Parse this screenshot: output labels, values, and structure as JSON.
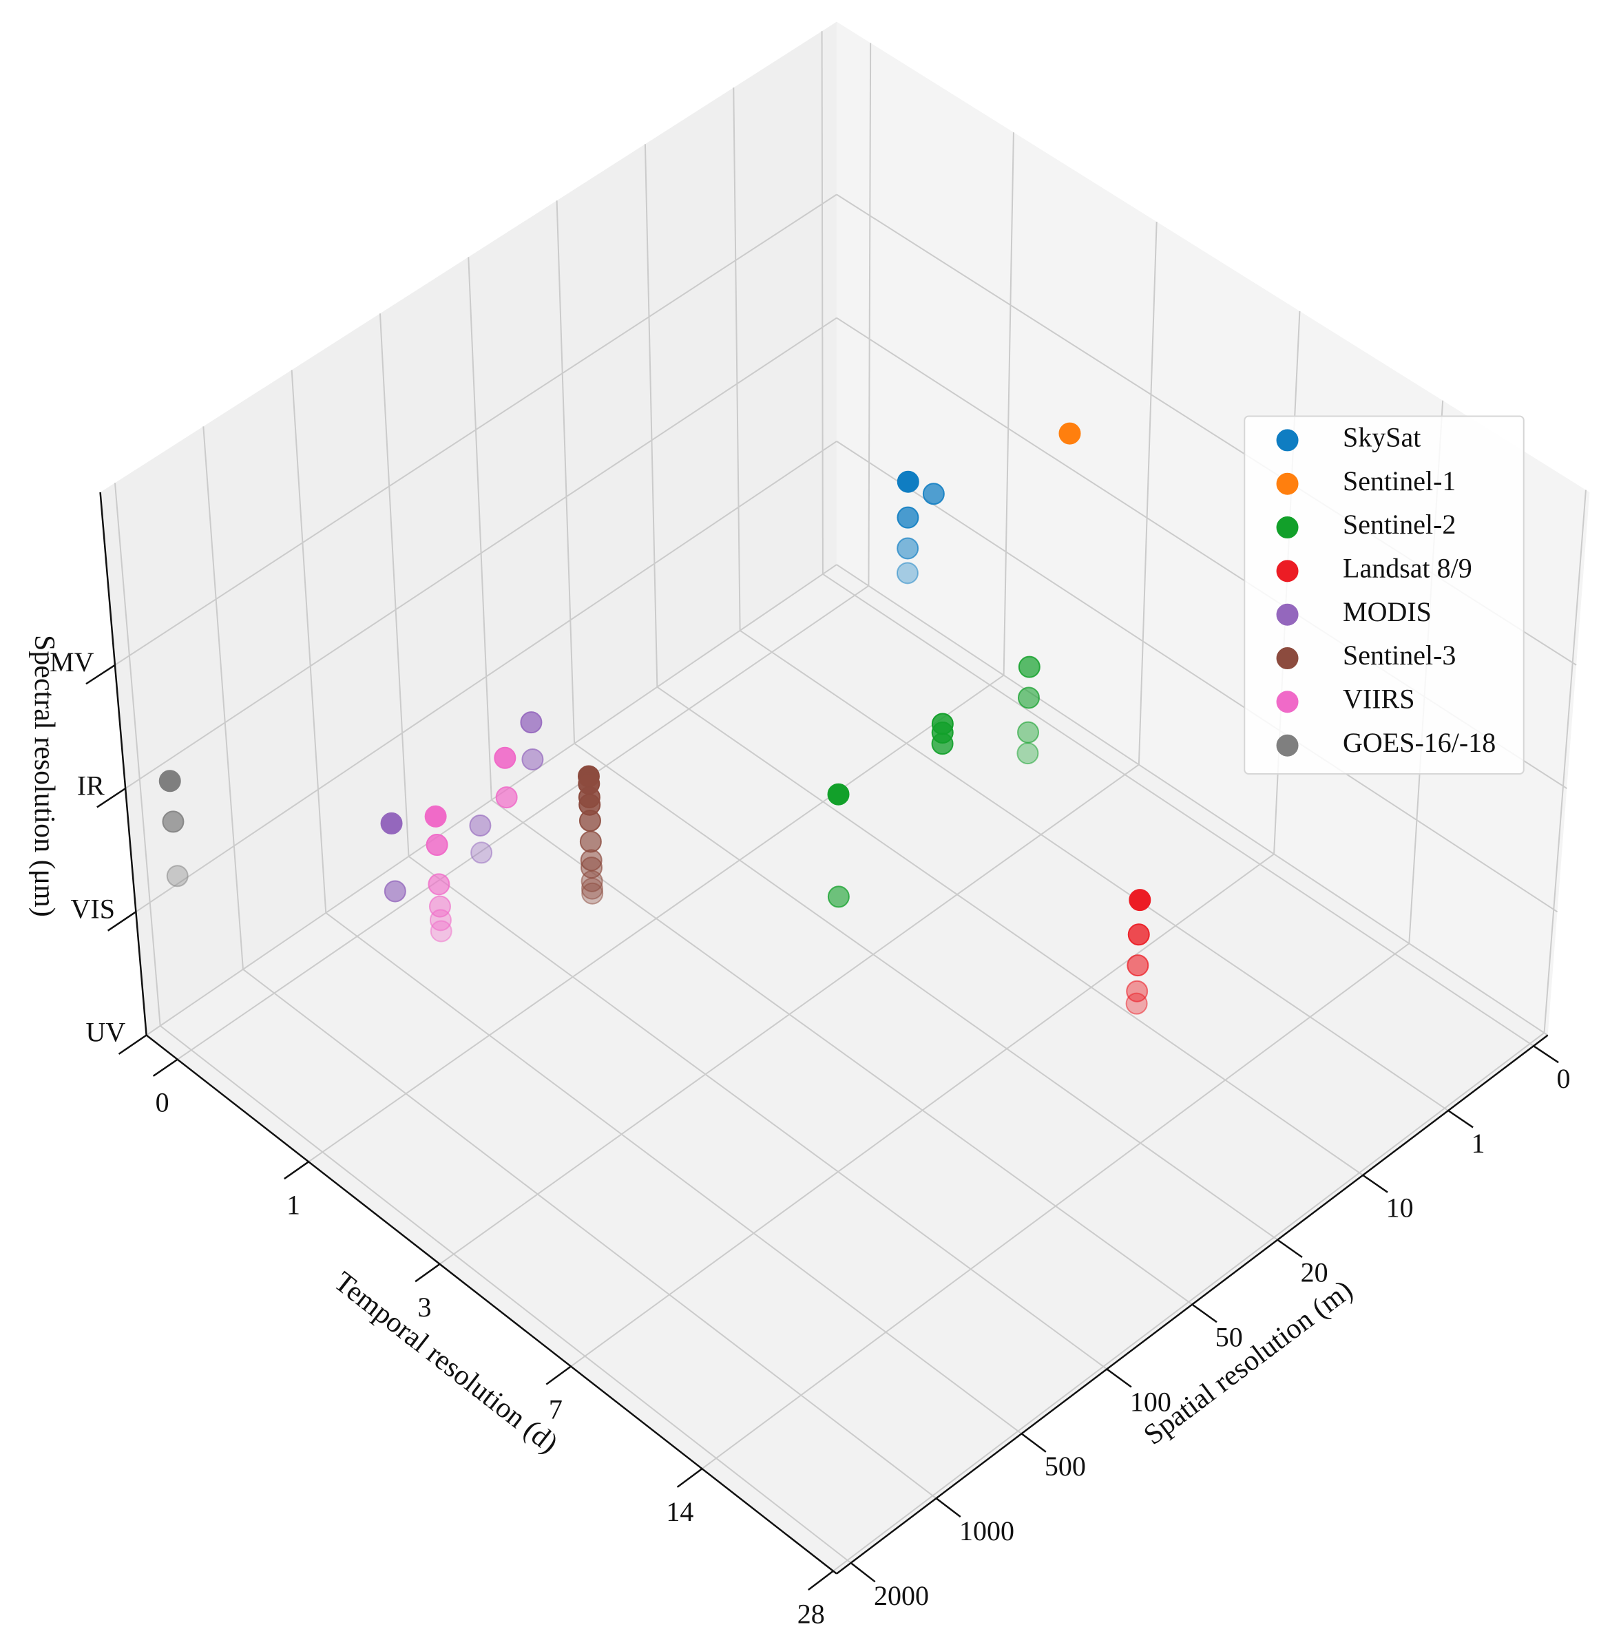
{
  "chart_data": {
    "type": "scatter3d",
    "xlabel": "Spatial resolution (m)",
    "ylabel": "Temporal resolution (d)",
    "zlabel": "Spectral resolution (μm)",
    "xlim": [
      0,
      2000
    ],
    "xticks": [
      0,
      1,
      10,
      20,
      50,
      100,
      500,
      1000,
      2000
    ],
    "ylim": [
      0,
      28
    ],
    "yticks": [
      0,
      1,
      3,
      7,
      14,
      28
    ],
    "zlim": [
      0,
      4.4
    ],
    "zticks": [
      {
        "value": 0,
        "label": "UV"
      },
      {
        "value": 1,
        "label": "VIS"
      },
      {
        "value": 2,
        "label": "IR"
      },
      {
        "value": 3,
        "label": "MV"
      }
    ],
    "grid": true,
    "legend": "upper right",
    "series": [
      {
        "name": "SkySat",
        "color": "#0f7dc2",
        "x": [
          1,
          0.7,
          1,
          1,
          1
        ],
        "y": [
          1,
          1,
          1,
          1,
          1
        ],
        "z": [
          2.12,
          1.88,
          1.83,
          1.58,
          1.38
        ]
      },
      {
        "name": "Sentinel-1",
        "color": "#ff7f0e",
        "x": [
          10
        ],
        "y": [
          6
        ],
        "z": [
          4.3
        ]
      },
      {
        "name": "Sentinel-2",
        "color": "#12a02a",
        "x": [
          10,
          10,
          10,
          10,
          20,
          20,
          20,
          60,
          60
        ],
        "y": [
          5,
          5,
          5,
          5,
          5,
          5,
          5,
          5,
          5
        ],
        "z": [
          2.22,
          1.97,
          1.69,
          1.52,
          2.25,
          2.18,
          2.09,
          2.27,
          1.44
        ]
      },
      {
        "name": "Landsat 8/9",
        "color": "#ec1c24",
        "x": [
          30,
          30,
          30,
          30,
          30
        ],
        "y": [
          16,
          16,
          16,
          16,
          16
        ],
        "z": [
          2.25,
          1.97,
          1.72,
          1.51,
          1.41
        ]
      },
      {
        "name": "MODIS",
        "color": "#9467bd",
        "x": [
          250,
          250,
          500,
          500,
          1000,
          1000
        ],
        "y": [
          1,
          1,
          1,
          1,
          1,
          1
        ],
        "z": [
          2.24,
          1.94,
          1.7,
          1.48,
          2.19,
          1.64
        ]
      },
      {
        "name": "Sentinel-3",
        "color": "#8c4b3e",
        "x": [
          300,
          300,
          300,
          300,
          300,
          300,
          300,
          300,
          300,
          300,
          300
        ],
        "y": [
          2,
          2,
          2,
          2,
          2,
          2,
          2,
          2,
          2,
          2,
          2
        ],
        "z": [
          2.26,
          2.2,
          2.09,
          2.03,
          1.9,
          1.73,
          1.58,
          1.52,
          1.41,
          1.35,
          1.31
        ]
      },
      {
        "name": "VIIRS",
        "color": "#f06ac8",
        "x": [
          375,
          375,
          750,
          750,
          750,
          750,
          750,
          750
        ],
        "y": [
          1,
          1,
          1,
          1,
          1,
          1,
          1,
          1
        ],
        "z": [
          2.1,
          1.78,
          2.01,
          1.78,
          1.46,
          1.28,
          1.17,
          1.08
        ]
      },
      {
        "name": "GOES-16/-18",
        "color": "#7f7f7f",
        "x": [
          2000,
          2000,
          2000
        ],
        "y": [
          0,
          0,
          0
        ],
        "z": [
          2.18,
          1.85,
          1.41
        ]
      }
    ]
  }
}
